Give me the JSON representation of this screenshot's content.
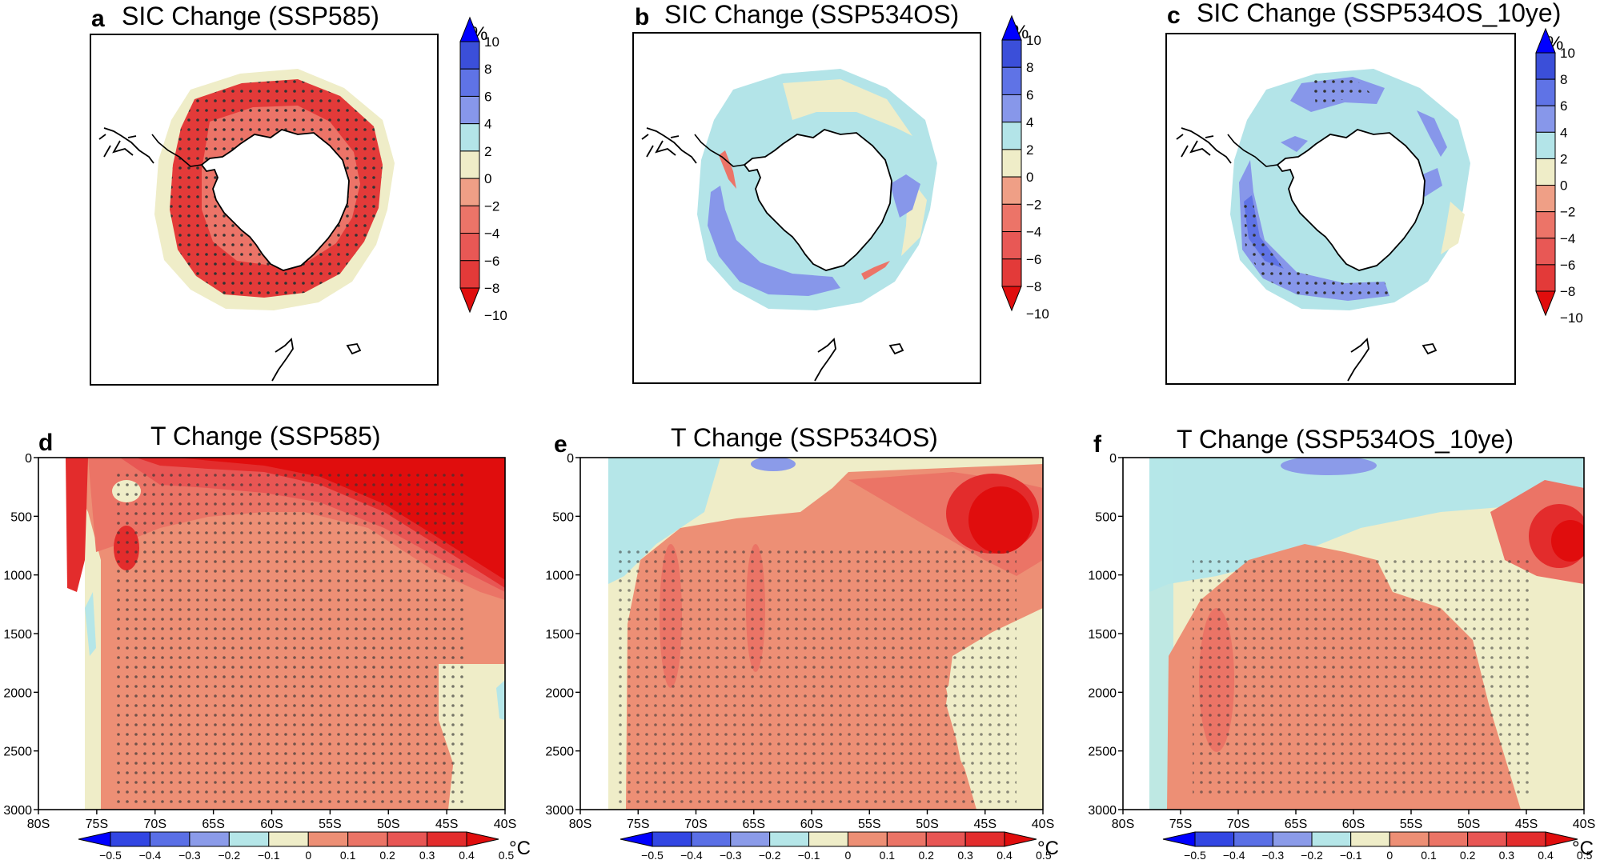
{
  "chart_data": [
    {
      "type": "heatmap",
      "panel": "a",
      "title": "SIC Change (SSP585)",
      "map": "south-polar-stereographic",
      "colorbar": {
        "unit": "%",
        "ticks": [
          "10",
          "8",
          "6",
          "4",
          "2",
          "0",
          "−2",
          "−4",
          "−6",
          "−8",
          "−10"
        ]
      },
      "dominant_signal": "strong SIC decrease (≈ −10 %) in ring around Antarctica, stippled (significant)"
    },
    {
      "type": "heatmap",
      "panel": "b",
      "title": "SIC Change (SSP534OS)",
      "map": "south-polar-stereographic",
      "colorbar": {
        "unit": "%",
        "ticks": [
          "10",
          "8",
          "6",
          "4",
          "2",
          "0",
          "−2",
          "−4",
          "−6",
          "−8",
          "−10"
        ]
      },
      "dominant_signal": "weak SIC increase (0 to +4 %) with small decreases"
    },
    {
      "type": "heatmap",
      "panel": "c",
      "title": "SIC Change (SSP534OS_10ye)",
      "map": "south-polar-stereographic",
      "colorbar": {
        "unit": "%",
        "ticks": [
          "10",
          "8",
          "6",
          "4",
          "2",
          "0",
          "−2",
          "−4",
          "−6",
          "−8",
          "−10"
        ]
      },
      "dominant_signal": "SIC increase (+2 to +8 %), largest in Ross/Amundsen sector"
    },
    {
      "type": "heatmap",
      "panel": "d",
      "title": "T Change (SSP585)",
      "xlabel": "",
      "ylabel": "",
      "x_ticks": [
        "80S",
        "75S",
        "70S",
        "65S",
        "60S",
        "55S",
        "50S",
        "45S",
        "40S"
      ],
      "y_ticks": [
        "0",
        "500",
        "1000",
        "1500",
        "2000",
        "2500",
        "3000"
      ],
      "xlim": [
        -80,
        -40
      ],
      "ylim": [
        3000,
        0
      ],
      "colorbar": {
        "unit": "°C",
        "ticks": [
          "−0.5",
          "−0.4",
          "−0.3",
          "−0.2",
          "−0.1",
          "0",
          "0.1",
          "0.2",
          "0.3",
          "0.4",
          "0.5"
        ]
      },
      "dominant_signal": "warming > 0.5 °C in upper 1000 m north of 60S; 0.2–0.3 °C at depth"
    },
    {
      "type": "heatmap",
      "panel": "e",
      "title": "T Change (SSP534OS)",
      "xlabel": "",
      "ylabel": "",
      "x_ticks": [
        "80S",
        "75S",
        "70S",
        "65S",
        "60S",
        "55S",
        "50S",
        "45S",
        "40S"
      ],
      "y_ticks": [
        "0",
        "500",
        "1000",
        "1500",
        "2000",
        "2500",
        "3000"
      ],
      "xlim": [
        -80,
        -40
      ],
      "ylim": [
        3000,
        0
      ],
      "colorbar": {
        "unit": "°C",
        "ticks": [
          "−0.5",
          "−0.4",
          "−0.3",
          "−0.2",
          "−0.1",
          "0",
          "0.1",
          "0.2",
          "0.3",
          "0.4",
          "0.5"
        ]
      },
      "dominant_signal": "warming 0.2–0.3 °C at depth, core > 0.4 °C near 43S 500 m, slight surface cooling"
    },
    {
      "type": "heatmap",
      "panel": "f",
      "title": "T Change (SSP534OS_10ye)",
      "xlabel": "",
      "ylabel": "",
      "x_ticks": [
        "80S",
        "75S",
        "70S",
        "65S",
        "60S",
        "55S",
        "50S",
        "45S",
        "40S"
      ],
      "y_ticks": [
        "0",
        "500",
        "1000",
        "1500",
        "2000",
        "2500",
        "3000"
      ],
      "xlim": [
        -80,
        -40
      ],
      "ylim": [
        3000,
        0
      ],
      "colorbar": {
        "unit": "°C",
        "ticks": [
          "−0.5",
          "−0.4",
          "−0.3",
          "−0.2",
          "−0.1",
          "0",
          "0.1",
          "0.2",
          "0.3",
          "0.4",
          "0.5"
        ]
      },
      "dominant_signal": "near-surface cooling (−0.1 to 0), deep warming 0.2–0.3 °C, core > 0.4 °C near 41S 800 m"
    }
  ],
  "map_colors": [
    "#0000ff",
    "#3b4fd9",
    "#5f73e6",
    "#8797ea",
    "#b3e4e8",
    "#efedc8",
    "#ef9f86",
    "#ec7468",
    "#e85855",
    "#e33a39",
    "#e00d0d"
  ],
  "temp_colors": [
    "#0000ff",
    "#3246e3",
    "#5a6fe6",
    "#8b9be9",
    "#b5e6e8",
    "#efedc8",
    "#ed8f75",
    "#eb7466",
    "#e85654",
    "#e32c2c",
    "#e00d0d"
  ]
}
